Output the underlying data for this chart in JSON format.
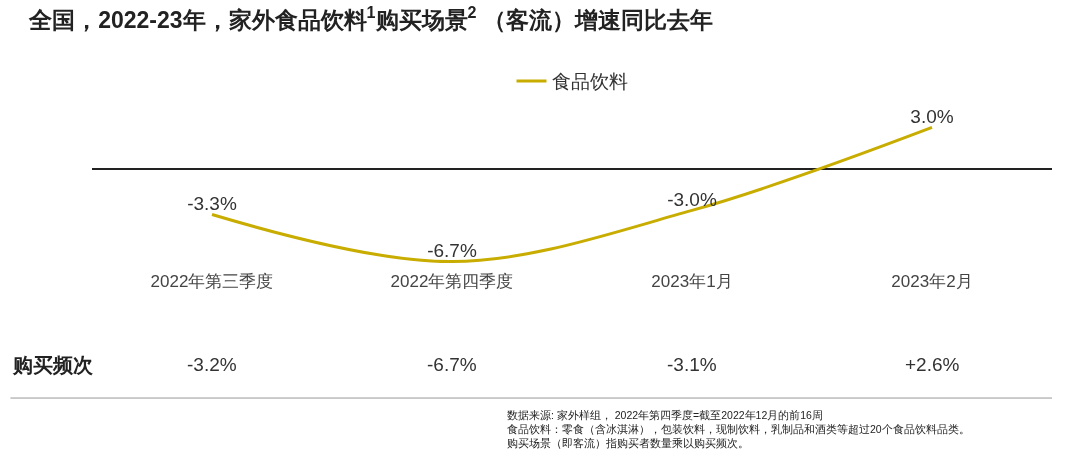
{
  "chart_data": {
    "type": "line",
    "title": "全国，2022-23年，家外食品饮料$^{1}$购买场景$^{2}$ （客流）增速同比去年",
    "categories": [
      "2022年第三季度",
      "2022年第四季度",
      "2023年1月",
      "2023年2月"
    ],
    "series": [
      {
        "name": "食品饮料",
        "color": "#c8ad00",
        "values": [
          -3.3,
          -6.7,
          -3.0,
          3.0
        ],
        "value_labels": [
          "-3.3%",
          "-6.7%",
          "-3.0%",
          "3.0%"
        ]
      }
    ],
    "legend": "top",
    "grid": false,
    "marker": "none",
    "annotations": [
      "购买频次",
      "-3.2%",
      "-6.7%",
      "-3.1%",
      "+2.6%",
      "数据来源: 家外样组， 2022年第四季度=截至2022年12月的前16周",
      "食品饮料：零食（含冰淇淋），包装饮料，现制饮料，乳制品和酒类等超过20个食品饮料品类。",
      "购买场景（即客流）指购买者数量乘以购买频次。"
    ]
  }
}
